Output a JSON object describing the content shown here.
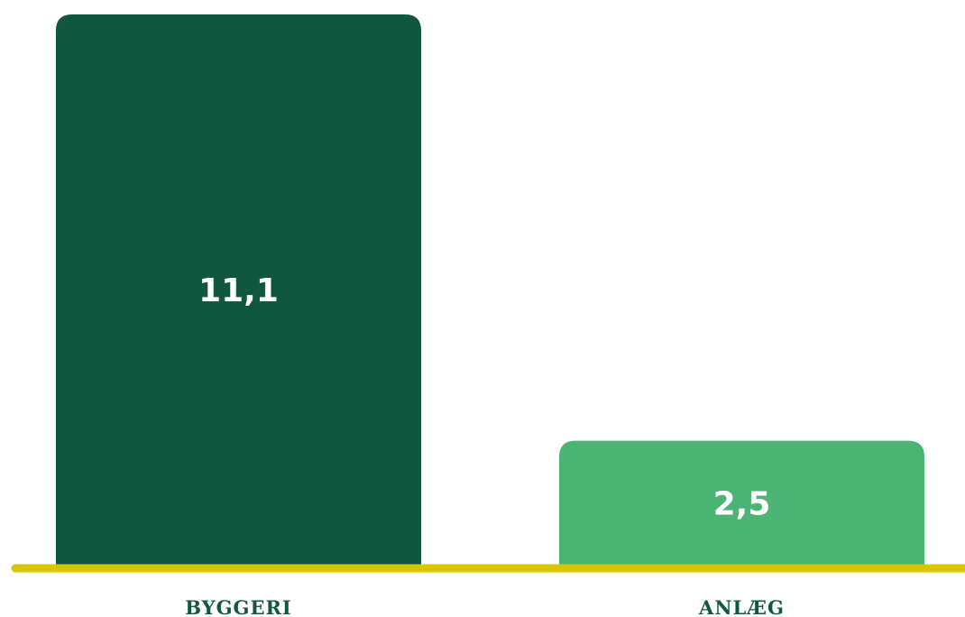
{
  "chart_data": {
    "type": "bar",
    "categories": [
      "BYGGERI",
      "ANLÆG"
    ],
    "values": [
      11.1,
      2.5
    ],
    "value_labels": [
      "11,1",
      "2,5"
    ],
    "title": "",
    "xlabel": "",
    "ylabel": "",
    "ylim": [
      0,
      11.1
    ],
    "grid": false,
    "legend": "none",
    "colors": {
      "bars": [
        "#0f5741",
        "#4bb374"
      ],
      "baseline": "#d8c400",
      "category_text": "#0f5741",
      "value_text": "#ffffff"
    }
  }
}
